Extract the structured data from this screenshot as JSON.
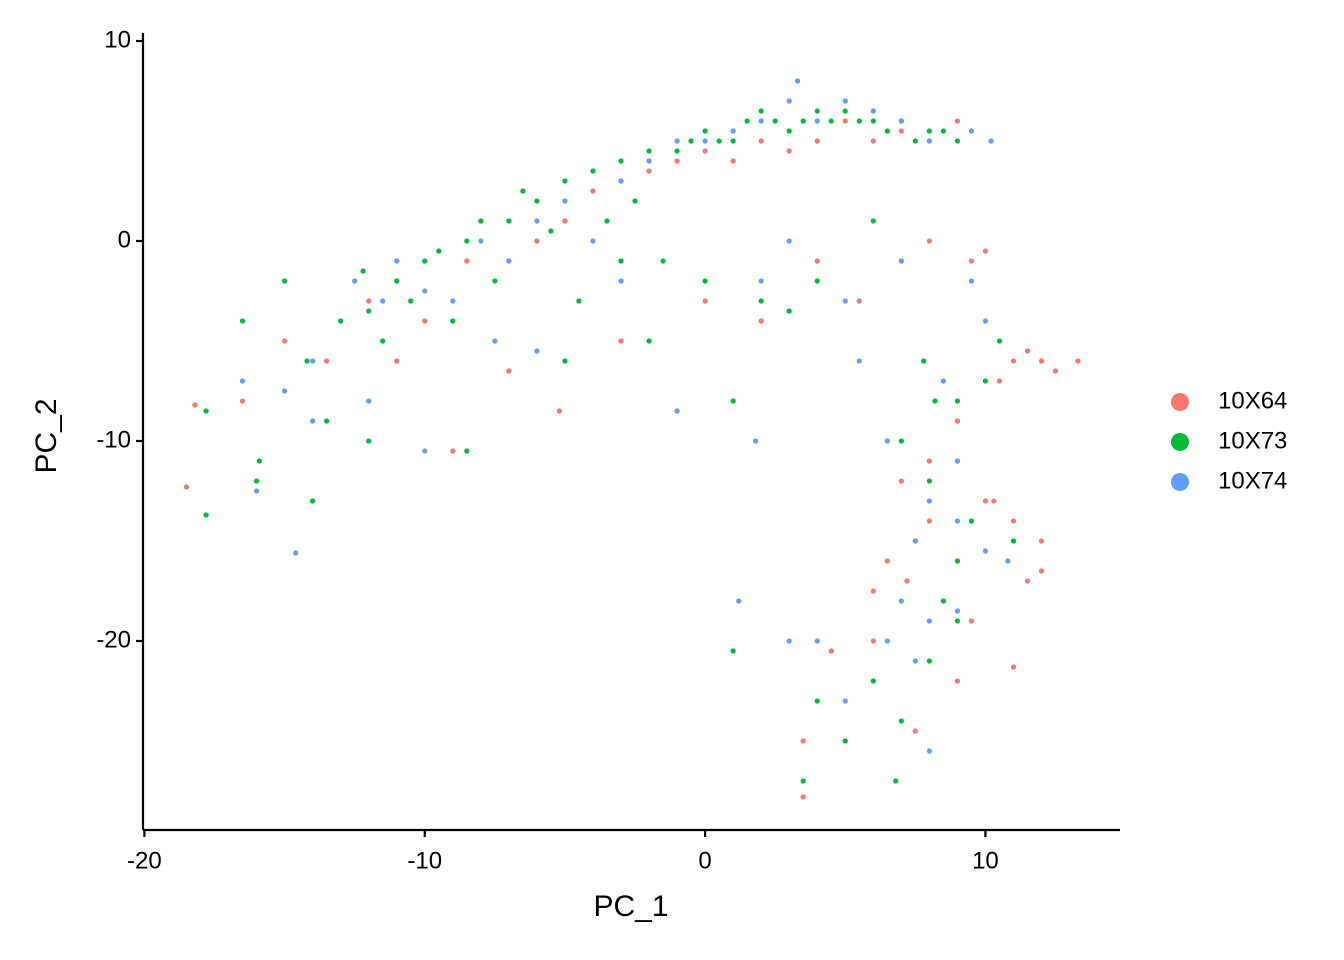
{
  "chart_data": {
    "type": "scatter",
    "xlabel": "PC_1",
    "ylabel": "PC_2",
    "xlim": [
      -20.05,
      14.8
    ],
    "ylim": [
      -29.45,
      10.4
    ],
    "xticks": [
      -20,
      -10,
      0,
      10
    ],
    "yticks": [
      -20,
      -10,
      0,
      10
    ],
    "legend": "right",
    "series": [
      {
        "name": "10X64",
        "color": "#F8766D",
        "values": [
          [
            -18.5,
            -12.3
          ],
          [
            -18.2,
            -8.2
          ],
          [
            -16.5,
            -8
          ],
          [
            -15,
            -5
          ],
          [
            -13.5,
            -6
          ],
          [
            -12,
            -3
          ],
          [
            -11,
            -6
          ],
          [
            -10,
            -4
          ],
          [
            -9,
            -10.5
          ],
          [
            -8.5,
            -1
          ],
          [
            -7,
            -6.5
          ],
          [
            -6,
            0
          ],
          [
            -5.2,
            -8.5
          ],
          [
            -5,
            1
          ],
          [
            -4,
            2.5
          ],
          [
            -3,
            3
          ],
          [
            -2,
            3.5
          ],
          [
            -1,
            4
          ],
          [
            0,
            4.5
          ],
          [
            1,
            4
          ],
          [
            2,
            5
          ],
          [
            3,
            4.5
          ],
          [
            4,
            5
          ],
          [
            5,
            6
          ],
          [
            6,
            5
          ],
          [
            7,
            5.5
          ],
          [
            8,
            5
          ],
          [
            9,
            6
          ],
          [
            -3,
            -5
          ],
          [
            0,
            -3
          ],
          [
            2,
            -4
          ],
          [
            4,
            -1
          ],
          [
            5.5,
            -3
          ],
          [
            8,
            0
          ],
          [
            9.5,
            -1
          ],
          [
            10,
            -0.5
          ],
          [
            11,
            -6
          ],
          [
            11.5,
            -5.5
          ],
          [
            12,
            -6
          ],
          [
            12.5,
            -6.5
          ],
          [
            13.3,
            -6
          ],
          [
            10.5,
            -7
          ],
          [
            9,
            -9
          ],
          [
            8,
            -11
          ],
          [
            7,
            -12
          ],
          [
            6.5,
            -16
          ],
          [
            7.2,
            -17
          ],
          [
            8,
            -14
          ],
          [
            9,
            -16
          ],
          [
            10,
            -13
          ],
          [
            11,
            -14
          ],
          [
            11.5,
            -17
          ],
          [
            12,
            -16.5
          ],
          [
            11,
            -21.3
          ],
          [
            9,
            -22
          ],
          [
            7.5,
            -24.5
          ],
          [
            6,
            -20
          ],
          [
            4.5,
            -20.5
          ],
          [
            3.5,
            -25
          ],
          [
            3.5,
            -27.8
          ],
          [
            8.5,
            -18
          ],
          [
            9.5,
            -19
          ],
          [
            6,
            -17.5
          ],
          [
            10.3,
            -13
          ],
          [
            12,
            -15
          ]
        ]
      },
      {
        "name": "10X73",
        "color": "#00BA38",
        "values": [
          [
            -17.8,
            -8.5
          ],
          [
            -16.5,
            -4
          ],
          [
            -15.9,
            -11
          ],
          [
            -15,
            -2
          ],
          [
            -14.2,
            -6
          ],
          [
            -13.5,
            -9
          ],
          [
            -13,
            -4
          ],
          [
            -12.2,
            -1.5
          ],
          [
            -12,
            -3.5
          ],
          [
            -11.5,
            -5
          ],
          [
            -11,
            -2
          ],
          [
            -10.5,
            -3
          ],
          [
            -10,
            -1
          ],
          [
            -9.5,
            -0.5
          ],
          [
            -9,
            -4
          ],
          [
            -8.5,
            0
          ],
          [
            -8,
            1
          ],
          [
            -7.5,
            -2
          ],
          [
            -7,
            1
          ],
          [
            -6.5,
            2.5
          ],
          [
            -6,
            2
          ],
          [
            -5.5,
            0.5
          ],
          [
            -5,
            3
          ],
          [
            -4.5,
            -3
          ],
          [
            -4,
            3.5
          ],
          [
            -3.5,
            1
          ],
          [
            -3,
            4
          ],
          [
            -2.5,
            2
          ],
          [
            -2,
            4.5
          ],
          [
            -1.5,
            -1
          ],
          [
            -1,
            4.5
          ],
          [
            -0.5,
            5
          ],
          [
            0,
            5.5
          ],
          [
            0.5,
            5
          ],
          [
            1,
            5
          ],
          [
            1.5,
            6
          ],
          [
            2,
            6.5
          ],
          [
            2.5,
            6
          ],
          [
            3,
            5.5
          ],
          [
            3.5,
            6
          ],
          [
            4,
            6.5
          ],
          [
            4.5,
            6
          ],
          [
            5,
            6.5
          ],
          [
            5.5,
            6
          ],
          [
            6,
            6
          ],
          [
            6.5,
            5.5
          ],
          [
            7,
            6
          ],
          [
            7.5,
            5
          ],
          [
            8,
            5.5
          ],
          [
            8.5,
            5.5
          ],
          [
            9,
            5
          ],
          [
            2,
            -3
          ],
          [
            4,
            -2
          ],
          [
            6,
            1
          ],
          [
            -14,
            -13
          ],
          [
            -12,
            -10
          ],
          [
            -8.5,
            -10.5
          ],
          [
            -5,
            -6
          ],
          [
            -2,
            -5
          ],
          [
            1,
            -20.5
          ],
          [
            7,
            -10
          ],
          [
            7.5,
            -15
          ],
          [
            8,
            -12
          ],
          [
            8.5,
            -18
          ],
          [
            9,
            -16
          ],
          [
            9.5,
            -14
          ],
          [
            10,
            -7
          ],
          [
            7,
            -24
          ],
          [
            8,
            -21
          ],
          [
            9,
            -19
          ],
          [
            6,
            -22
          ],
          [
            5,
            -25
          ],
          [
            4,
            -23
          ],
          [
            3.5,
            -27
          ],
          [
            8.2,
            -8
          ],
          [
            7.8,
            -6
          ],
          [
            9,
            -8
          ],
          [
            10.5,
            -5
          ],
          [
            11,
            -15
          ],
          [
            1,
            -8
          ],
          [
            -16,
            -12
          ],
          [
            -17.8,
            -13.7
          ],
          [
            3,
            -3.5
          ],
          [
            0,
            -2
          ],
          [
            -3,
            -1
          ],
          [
            6.8,
            -27
          ]
        ]
      },
      {
        "name": "10X74",
        "color": "#619CFF",
        "values": [
          [
            -14.6,
            -15.6
          ],
          [
            -16,
            -12.5
          ],
          [
            -15,
            -7.5
          ],
          [
            -14,
            -6
          ],
          [
            -12.5,
            -2
          ],
          [
            -11.5,
            -3
          ],
          [
            -11,
            -1
          ],
          [
            -10,
            -2.5
          ],
          [
            -9,
            -3
          ],
          [
            -8,
            0
          ],
          [
            -7,
            -1
          ],
          [
            -6,
            1
          ],
          [
            -5,
            2
          ],
          [
            -4,
            0
          ],
          [
            -3,
            3
          ],
          [
            -2,
            4
          ],
          [
            -1,
            5
          ],
          [
            0,
            5
          ],
          [
            1,
            5.5
          ],
          [
            2,
            6
          ],
          [
            3,
            7
          ],
          [
            3.3,
            8
          ],
          [
            4,
            6
          ],
          [
            5,
            7
          ],
          [
            6,
            6.5
          ],
          [
            7,
            6
          ],
          [
            8,
            5
          ],
          [
            9.5,
            5.5
          ],
          [
            10.2,
            5
          ],
          [
            -12,
            -8
          ],
          [
            -10,
            -10.5
          ],
          [
            -7.5,
            -5
          ],
          [
            -6,
            -5.5
          ],
          [
            -3,
            -2
          ],
          [
            -1,
            -8.5
          ],
          [
            2,
            -2
          ],
          [
            3,
            0
          ],
          [
            5,
            -3
          ],
          [
            7,
            -1
          ],
          [
            9.5,
            -2
          ],
          [
            10,
            -4
          ],
          [
            8.5,
            -7
          ],
          [
            9,
            -11
          ],
          [
            8,
            -13
          ],
          [
            7.5,
            -15
          ],
          [
            9,
            -14
          ],
          [
            10,
            -15.5
          ],
          [
            10.8,
            -16
          ],
          [
            7,
            -18
          ],
          [
            8,
            -19
          ],
          [
            9,
            -18.5
          ],
          [
            6.5,
            -20
          ],
          [
            7.5,
            -21
          ],
          [
            8,
            -25.5
          ],
          [
            5,
            -23
          ],
          [
            4,
            -20
          ],
          [
            1.2,
            -18
          ],
          [
            1.8,
            -10
          ],
          [
            3,
            -20
          ],
          [
            5.5,
            -6
          ],
          [
            6.5,
            -10
          ],
          [
            -14,
            -9
          ],
          [
            -16.5,
            -7
          ]
        ]
      }
    ]
  }
}
